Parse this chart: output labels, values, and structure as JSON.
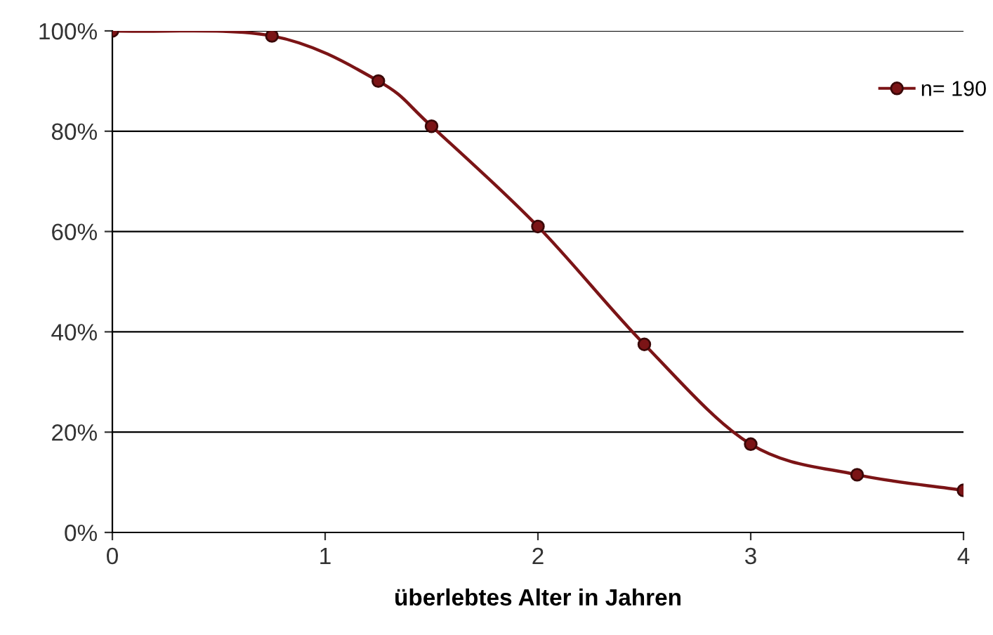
{
  "chart_data": {
    "type": "line",
    "xlabel": "überlebtes Alter in Jahren",
    "series": [
      {
        "name": "n= 190",
        "color": "#7b1416",
        "x": [
          0,
          0.75,
          1.25,
          1.5,
          2,
          2.5,
          3,
          3.5,
          4
        ],
        "values": [
          100,
          99,
          90,
          81,
          61,
          37.5,
          17.6,
          11.5,
          8.4
        ]
      }
    ],
    "xlim": [
      0,
      4
    ],
    "xticks": [
      0,
      1,
      2,
      3,
      4
    ],
    "ylim": [
      0,
      100
    ],
    "yticks": [
      {
        "value": 0,
        "label": "0%"
      },
      {
        "value": 20,
        "label": "20%"
      },
      {
        "value": 40,
        "label": "40%"
      },
      {
        "value": 60,
        "label": "60%"
      },
      {
        "value": 80,
        "label": "80%"
      },
      {
        "value": 100,
        "label": "100%"
      }
    ],
    "grid": "y",
    "legend": "top right",
    "marker": "circle",
    "line_style": "solid"
  }
}
